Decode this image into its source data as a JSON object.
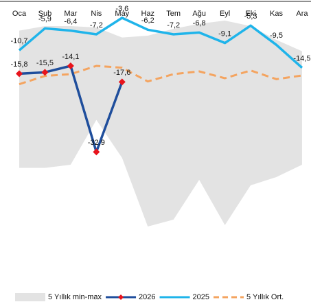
{
  "chart_data": {
    "type": "line",
    "categories": [
      "Oca",
      "Şub",
      "Mar",
      "Nis",
      "May",
      "Haz",
      "Tem",
      "Ağu",
      "Eyl",
      "Eki",
      "Kas",
      "Ara"
    ],
    "ylim": [
      -60,
      0
    ],
    "range": {
      "name": "5 Yıllık min-max",
      "color": "#e3e3e3",
      "max": [
        -6.4,
        -5.4,
        -5.4,
        -5.7,
        -7.9,
        -7.5,
        -6.0,
        -4.9,
        -4.2,
        -5.4,
        -8.4,
        -10.9
      ],
      "min": [
        -36.4,
        -36.4,
        -35.7,
        -25.9,
        -34.2,
        -49.2,
        -47.7,
        -39.0,
        -48.9,
        -40.2,
        -38.4,
        -35.7
      ]
    },
    "series": [
      {
        "name": "2026",
        "color": "#1f4e9c",
        "marker_color": "#e8141c",
        "values": [
          -15.8,
          -15.5,
          -14.1,
          -32.9,
          -17.6,
          null,
          null,
          null,
          null,
          null,
          null,
          null
        ],
        "value_labels": [
          "-15,8",
          "-15,5",
          "-14,1",
          "-32,9",
          "-17,6",
          null,
          null,
          null,
          null,
          null,
          null,
          null
        ]
      },
      {
        "name": "2025",
        "color": "#1fb4ea",
        "values": [
          -10.7,
          -5.9,
          -6.4,
          -7.2,
          -3.6,
          -6.2,
          -7.2,
          -6.8,
          -9.1,
          -5.3,
          -9.5,
          -14.5
        ],
        "value_labels": [
          "-10,7",
          "-5,9",
          "-6,4",
          "-7,2",
          "-3,6",
          "-6,2",
          "-7,2",
          "-6,8",
          "-9,1",
          "-5,3",
          "-9,5",
          "-14,5"
        ]
      },
      {
        "name": "5 Yıllık Ort.",
        "color": "#f4a460",
        "dashed": true,
        "values": [
          -18.1,
          -16.3,
          -15.9,
          -14.1,
          -14.5,
          -17.5,
          -15.9,
          -15.3,
          -16.8,
          -15.1,
          -17.0,
          -16.2
        ]
      }
    ]
  }
}
